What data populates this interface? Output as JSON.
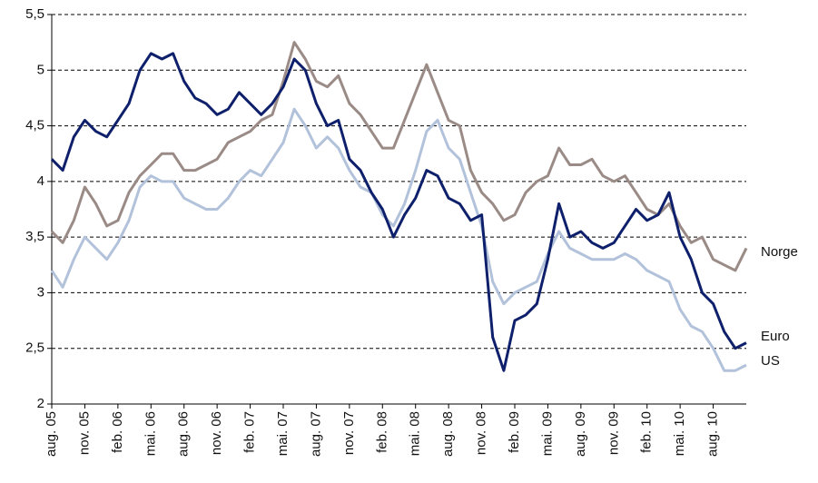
{
  "chart_data": {
    "type": "line",
    "categories": [
      "aug. 05",
      null,
      null,
      "nov. 05",
      null,
      null,
      "feb. 06",
      null,
      null,
      "mai. 06",
      null,
      null,
      "aug. 06",
      null,
      null,
      "nov. 06",
      null,
      null,
      "feb. 07",
      null,
      null,
      "mai. 07",
      null,
      null,
      "aug. 07",
      null,
      null,
      "nov. 07",
      null,
      null,
      "feb. 08",
      null,
      null,
      "mai. 08",
      null,
      null,
      "aug. 08",
      null,
      null,
      "nov. 08",
      null,
      null,
      "feb. 09",
      null,
      null,
      "mai. 09",
      null,
      null,
      "aug. 09",
      null,
      null,
      "nov. 09",
      null,
      null,
      "feb. 10",
      null,
      null,
      "mai. 10",
      null,
      null,
      "aug. 10",
      null,
      null,
      null
    ],
    "series": [
      {
        "name": "Norge",
        "color": "#9a8b86",
        "values": [
          3.55,
          3.45,
          3.65,
          3.95,
          3.8,
          3.6,
          3.65,
          3.9,
          4.05,
          4.15,
          4.25,
          4.25,
          4.1,
          4.1,
          4.15,
          4.2,
          4.35,
          4.4,
          4.45,
          4.55,
          4.6,
          4.9,
          5.25,
          5.1,
          4.9,
          4.85,
          4.95,
          4.7,
          4.6,
          4.45,
          4.3,
          4.3,
          4.55,
          4.8,
          5.05,
          4.8,
          4.55,
          4.5,
          4.1,
          3.9,
          3.8,
          3.65,
          3.7,
          3.9,
          4.0,
          4.05,
          4.3,
          4.15,
          4.15,
          4.2,
          4.05,
          4.0,
          4.05,
          3.9,
          3.75,
          3.7,
          3.8,
          3.6,
          3.45,
          3.5,
          3.3,
          3.25,
          3.2,
          3.4
        ]
      },
      {
        "name": "Euro",
        "color": "#0e1f6b",
        "values": [
          4.2,
          4.1,
          4.4,
          4.55,
          4.45,
          4.4,
          4.55,
          4.7,
          5.0,
          5.15,
          5.1,
          5.15,
          4.9,
          4.75,
          4.7,
          4.6,
          4.65,
          4.8,
          4.7,
          4.6,
          4.7,
          4.85,
          5.1,
          5.0,
          4.7,
          4.5,
          4.55,
          4.2,
          4.1,
          3.9,
          3.75,
          3.5,
          3.7,
          3.85,
          4.1,
          4.05,
          3.85,
          3.8,
          3.65,
          3.7,
          2.6,
          2.3,
          2.75,
          2.8,
          2.9,
          3.3,
          3.8,
          3.5,
          3.55,
          3.45,
          3.4,
          3.45,
          3.6,
          3.75,
          3.65,
          3.7,
          3.9,
          3.5,
          3.3,
          3.0,
          2.9,
          2.65,
          2.5,
          2.55
        ]
      },
      {
        "name": "US",
        "color": "#b3c2db",
        "values": [
          3.2,
          3.05,
          3.3,
          3.5,
          3.4,
          3.3,
          3.45,
          3.65,
          3.95,
          4.05,
          4.0,
          4.0,
          3.85,
          3.8,
          3.75,
          3.75,
          3.85,
          4.0,
          4.1,
          4.05,
          4.2,
          4.35,
          4.65,
          4.5,
          4.3,
          4.4,
          4.3,
          4.1,
          3.95,
          3.9,
          3.7,
          3.6,
          3.8,
          4.1,
          4.45,
          4.55,
          4.3,
          4.2,
          3.9,
          3.6,
          3.1,
          2.9,
          3.0,
          3.05,
          3.1,
          3.35,
          3.55,
          3.4,
          3.35,
          3.3,
          3.3,
          3.3,
          3.35,
          3.3,
          3.2,
          3.15,
          3.1,
          2.85,
          2.7,
          2.65,
          2.5,
          2.3,
          2.3,
          2.35
        ]
      }
    ],
    "ylim": [
      2,
      5.5
    ],
    "yticks": [
      2,
      {
        "value": 2.5,
        "label": "2,5"
      },
      3,
      {
        "value": 3.5,
        "label": "3,5"
      },
      4,
      {
        "value": 4.5,
        "label": "4,5"
      },
      5,
      {
        "value": 5.5,
        "label": "5,5"
      }
    ],
    "grid": true
  }
}
